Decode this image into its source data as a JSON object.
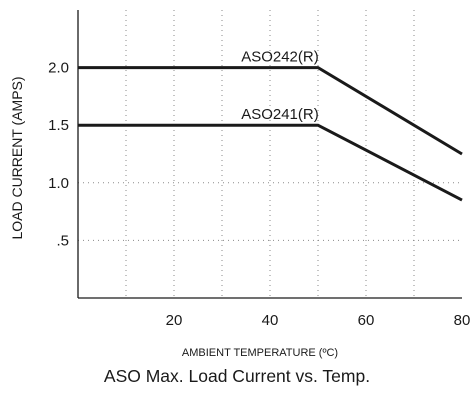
{
  "chart_data": {
    "type": "line",
    "title": "ASO Max. Load Current vs. Temp.",
    "xlabel": "AMBIENT TEMPERATURE (ºC)",
    "ylabel": "LOAD CURRENT (AMPS)",
    "xlim": [
      0,
      80
    ],
    "ylim": [
      0,
      2.5
    ],
    "x_ticks": [
      {
        "value": 20,
        "label": "20"
      },
      {
        "value": 40,
        "label": "40"
      },
      {
        "value": 60,
        "label": "60"
      },
      {
        "value": 80,
        "label": "80"
      }
    ],
    "y_ticks": [
      {
        "value": 0.5,
        "label": ".5"
      },
      {
        "value": 1.0,
        "label": "1.0"
      },
      {
        "value": 1.5,
        "label": "1.5"
      },
      {
        "value": 2.0,
        "label": "2.0"
      }
    ],
    "x_gridlines": [
      10,
      20,
      30,
      40,
      50,
      60,
      70
    ],
    "y_gridlines": [
      0.5,
      1.0
    ],
    "grid": "dotted",
    "series": [
      {
        "name": "ASO242(R)",
        "points": [
          [
            0,
            2.0
          ],
          [
            50,
            2.0
          ],
          [
            80,
            1.25
          ]
        ],
        "label_x": 34,
        "label_y": 2.0
      },
      {
        "name": "ASO241(R)",
        "points": [
          [
            0,
            1.5
          ],
          [
            50,
            1.5
          ],
          [
            80,
            0.85
          ]
        ],
        "label_x": 34,
        "label_y": 1.5
      }
    ],
    "colors": {
      "line": "#1a1a1a",
      "axis": "#1a1a1a",
      "grid": "#8a8a8a"
    }
  }
}
